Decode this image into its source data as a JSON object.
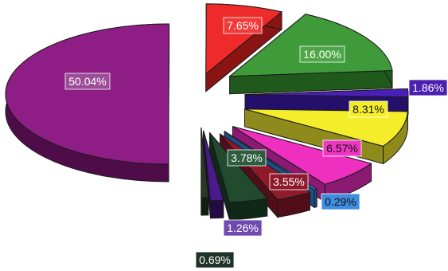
{
  "chart_data": {
    "type": "pie",
    "title": "",
    "style": "3d-exploded",
    "slices": [
      {
        "label": "50.04%",
        "value": 50.04,
        "color": "#8e1e86",
        "side": "#4e0d49",
        "label_bg": "#9c4d98",
        "label_fg": "#ffffff"
      },
      {
        "label": "7.65%",
        "value": 7.65,
        "color": "#ef2a2a",
        "side": "#8a1414",
        "label_bg": "#ef3a3a",
        "label_fg": "#ffffff"
      },
      {
        "label": "16.00%",
        "value": 16.0,
        "color": "#3f9a3a",
        "side": "#1f5a1c",
        "label_bg": "#4ea648",
        "label_fg": "#ffffff"
      },
      {
        "label": "1.86%",
        "value": 1.86,
        "color": "#4a1fb8",
        "side": "#24106a",
        "label_bg": "#4c1fb0",
        "label_fg": "#ffffff"
      },
      {
        "label": "8.31%",
        "value": 8.31,
        "color": "#f4ee2a",
        "side": "#8f8a1c",
        "label_bg": "#f4ee2a",
        "label_fg": "#111111"
      },
      {
        "label": "6.57%",
        "value": 6.57,
        "color": "#ef2fc0",
        "side": "#8c1a72",
        "label_bg": "#ef36c2",
        "label_fg": "#111111"
      },
      {
        "label": "0.29%",
        "value": 0.29,
        "color": "#3a86d8",
        "side": "#1f4c82",
        "label_bg": "#3f8ee0",
        "label_fg": "#111111"
      },
      {
        "label": "3.55%",
        "value": 3.55,
        "color": "#8e1b2c",
        "side": "#520e18",
        "label_bg": "#8e1b2c",
        "label_fg": "#ffffff"
      },
      {
        "label": "3.78%",
        "value": 3.78,
        "color": "#214a2e",
        "side": "#102818",
        "label_bg": "#2e5c3e",
        "label_fg": "#ffffff"
      },
      {
        "label": "1.26%",
        "value": 1.26,
        "color": "#4a1a8c",
        "side": "#230c44",
        "label_bg": "#6f4ab0",
        "label_fg": "#ffffff"
      },
      {
        "label": "0.69%",
        "value": 0.69,
        "color": "#2a3a22",
        "side": "#141d10",
        "label_bg": "#1f3328",
        "label_fg": "#ffffff"
      }
    ]
  }
}
